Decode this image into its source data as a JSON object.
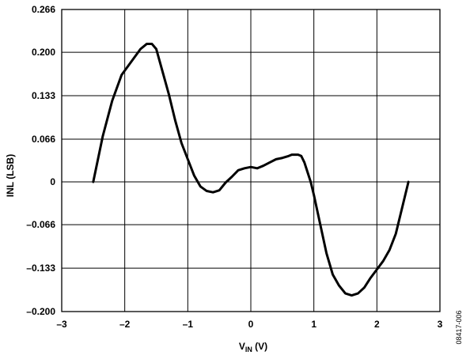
{
  "chart_data": {
    "type": "line",
    "title": "",
    "xlabel_main": "V",
    "xlabel_sub": "IN",
    "xlabel_unit": " (V)",
    "ylabel": "INL (LSB)",
    "xlim": [
      -3,
      3
    ],
    "ylim": [
      -0.2,
      0.266
    ],
    "grid": true,
    "x_ticks": [
      -3,
      -2,
      -1,
      0,
      1,
      2,
      3
    ],
    "x_tick_labels": [
      "–3",
      "–2",
      "–1",
      "0",
      "1",
      "2",
      "3"
    ],
    "y_ticks": [
      -0.2,
      -0.133,
      -0.066,
      0,
      0.066,
      0.133,
      0.2,
      0.266
    ],
    "y_tick_labels": [
      "–0.200",
      "–0.133",
      "–0.066",
      "0",
      "0.066",
      "0.133",
      "0.200",
      "0.266"
    ],
    "series": [
      {
        "x": [
          -2.5,
          -2.35,
          -2.2,
          -2.05,
          -1.9,
          -1.75,
          -1.65,
          -1.57,
          -1.5,
          -1.4,
          -1.3,
          -1.2,
          -1.1,
          -1.0,
          -0.9,
          -0.8,
          -0.7,
          -0.6,
          -0.5,
          -0.4,
          -0.3,
          -0.2,
          -0.1,
          0.0,
          0.1,
          0.2,
          0.3,
          0.4,
          0.5,
          0.6,
          0.65,
          0.75,
          0.8,
          0.85,
          0.9,
          0.95,
          1.0,
          1.1,
          1.2,
          1.3,
          1.4,
          1.5,
          1.6,
          1.7,
          1.8,
          1.9,
          2.0,
          2.1,
          2.2,
          2.3,
          2.4,
          2.5
        ],
        "y": [
          0.0,
          0.07,
          0.125,
          0.165,
          0.185,
          0.205,
          0.213,
          0.213,
          0.205,
          0.17,
          0.135,
          0.095,
          0.06,
          0.035,
          0.01,
          -0.007,
          -0.014,
          -0.016,
          -0.013,
          -0.001,
          0.008,
          0.018,
          0.021,
          0.023,
          0.021,
          0.025,
          0.03,
          0.035,
          0.037,
          0.04,
          0.042,
          0.042,
          0.04,
          0.03,
          0.015,
          0.0,
          -0.02,
          -0.065,
          -0.11,
          -0.143,
          -0.16,
          -0.172,
          -0.175,
          -0.172,
          -0.163,
          -0.148,
          -0.135,
          -0.122,
          -0.105,
          -0.08,
          -0.04,
          0.0
        ]
      }
    ]
  },
  "figure_code": "08417-006"
}
